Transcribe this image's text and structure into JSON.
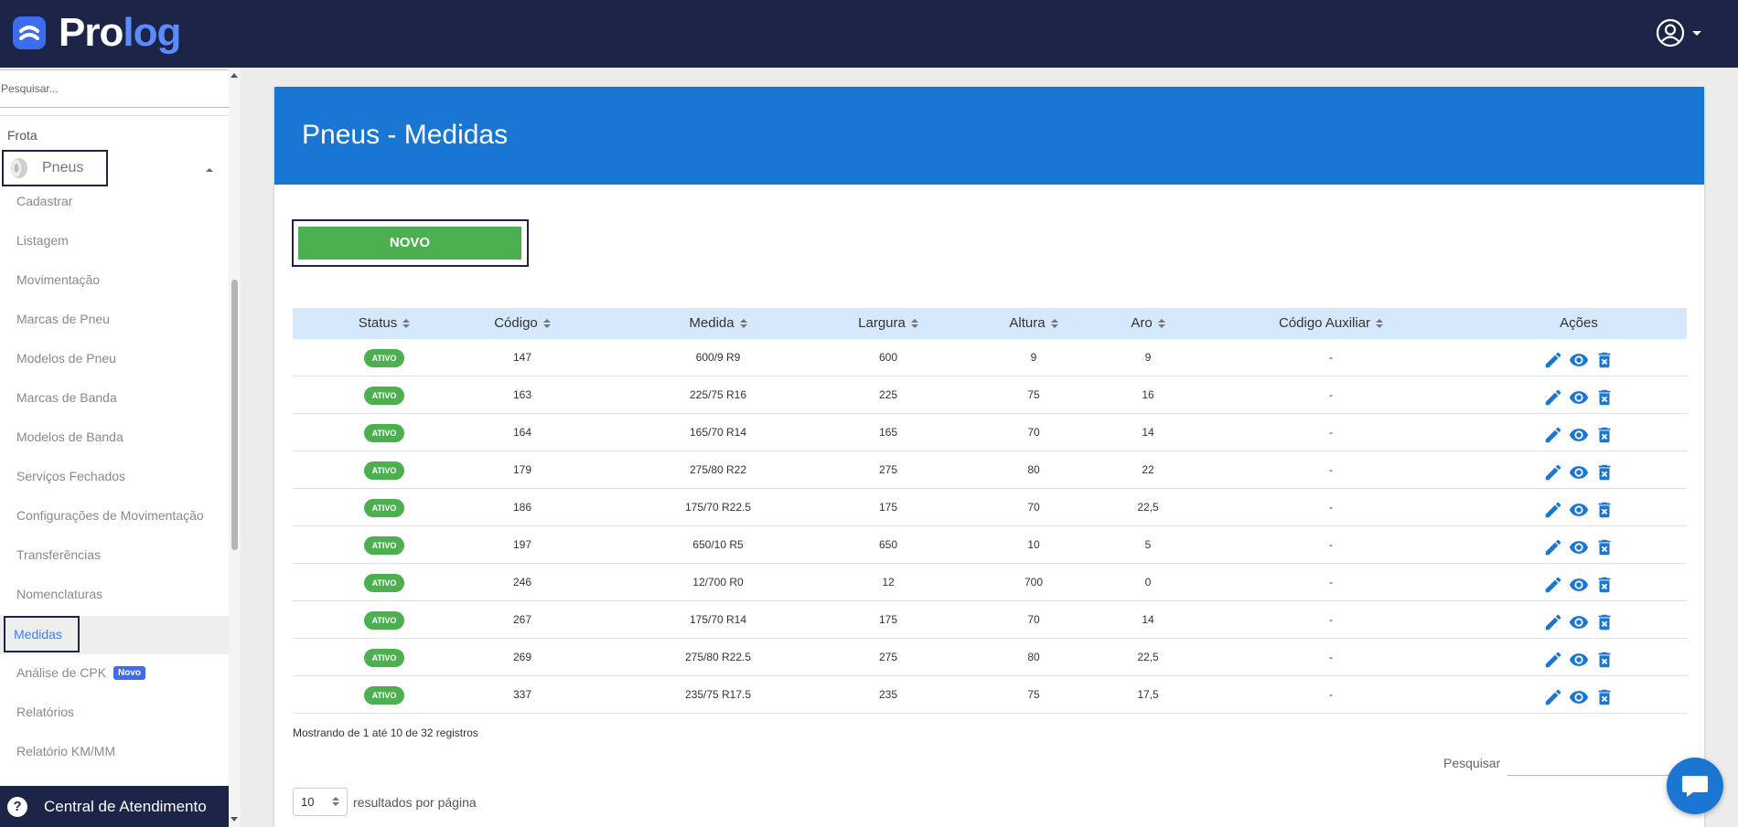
{
  "header": {
    "brand_main": "Pro",
    "brand_accent": "log"
  },
  "sidebar": {
    "search_placeholder": "Pesquisar...",
    "section": "Frota",
    "group": "Pneus",
    "items": [
      "Cadastrar",
      "Listagem",
      "Movimentação",
      "Marcas de Pneu",
      "Modelos de Pneu",
      "Marcas de Banda",
      "Modelos de Banda",
      "Serviços Fechados",
      "Configurações de Movimentação",
      "Transferências",
      "Nomenclaturas",
      "Medidas",
      "Análise de CPK",
      "Relatórios",
      "Relatório KM/MM"
    ],
    "active_item": "Medidas",
    "new_badge": "Novo",
    "support": "Central de Atendimento"
  },
  "main": {
    "title": "Pneus - Medidas",
    "new_button": "NOVO",
    "columns": [
      "Status",
      "Código",
      "Medida",
      "Largura",
      "Altura",
      "Aro",
      "Código Auxiliar",
      "Ações"
    ],
    "rows": [
      {
        "status": "ATIVO",
        "codigo": "147",
        "medida": "600/9 R9",
        "largura": "600",
        "altura": "9",
        "aro": "9",
        "aux": "-"
      },
      {
        "status": "ATIVO",
        "codigo": "163",
        "medida": "225/75 R16",
        "largura": "225",
        "altura": "75",
        "aro": "16",
        "aux": "-"
      },
      {
        "status": "ATIVO",
        "codigo": "164",
        "medida": "165/70 R14",
        "largura": "165",
        "altura": "70",
        "aro": "14",
        "aux": "-"
      },
      {
        "status": "ATIVO",
        "codigo": "179",
        "medida": "275/80 R22",
        "largura": "275",
        "altura": "80",
        "aro": "22",
        "aux": "-"
      },
      {
        "status": "ATIVO",
        "codigo": "186",
        "medida": "175/70 R22.5",
        "largura": "175",
        "altura": "70",
        "aro": "22,5",
        "aux": "-"
      },
      {
        "status": "ATIVO",
        "codigo": "197",
        "medida": "650/10 R5",
        "largura": "650",
        "altura": "10",
        "aro": "5",
        "aux": "-"
      },
      {
        "status": "ATIVO",
        "codigo": "246",
        "medida": "12/700 R0",
        "largura": "12",
        "altura": "700",
        "aro": "0",
        "aux": "-"
      },
      {
        "status": "ATIVO",
        "codigo": "267",
        "medida": "175/70 R14",
        "largura": "175",
        "altura": "70",
        "aro": "14",
        "aux": "-"
      },
      {
        "status": "ATIVO",
        "codigo": "269",
        "medida": "275/80 R22.5",
        "largura": "275",
        "altura": "80",
        "aro": "22,5",
        "aux": "-"
      },
      {
        "status": "ATIVO",
        "codigo": "337",
        "medida": "235/75 R17.5",
        "largura": "235",
        "altura": "75",
        "aro": "17,5",
        "aux": "-"
      }
    ],
    "info": "Mostrando de 1 até 10 de 32 registros",
    "search_label": "Pesquisar",
    "page_size": "10",
    "page_size_label": "resultados por página"
  },
  "colors": {
    "topbar": "#1c2448",
    "header_blue": "#1976d2",
    "success": "#4caf50",
    "action_blue": "#1976d2"
  },
  "icons": {
    "row_actions": [
      "pencil-icon",
      "eye-icon",
      "trash-icon"
    ]
  }
}
